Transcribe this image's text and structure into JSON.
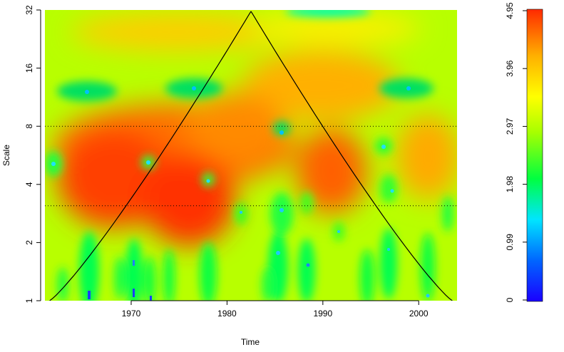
{
  "chart_data": {
    "type": "heatmap",
    "title": "",
    "xlabel": "Time",
    "ylabel": "Scale",
    "xlim": [
      1961,
      2004
    ],
    "ylim": [
      1,
      32
    ],
    "y_scale": "log2",
    "x_ticks": [
      1970,
      1980,
      1990,
      2000
    ],
    "y_ticks": [
      1,
      2,
      4,
      8,
      16,
      32
    ],
    "color_scale": {
      "min": 0,
      "max": 4.95,
      "tick_labels": [
        "0",
        "0.99",
        "1.98",
        "2.97",
        "3.96",
        "4.95"
      ],
      "palette": [
        "#1a00ff",
        "#0066ff",
        "#00e5ff",
        "#00ff40",
        "#a8ff00",
        "#ffff00",
        "#ffb000",
        "#ff2a00"
      ]
    },
    "cone_of_influence": {
      "peak": [
        1982.5,
        31.5
      ],
      "left_base": [
        1961.5,
        1
      ],
      "right_base": [
        2003.5,
        1
      ]
    },
    "significance_lines": [
      8,
      3.1
    ],
    "hotspots": [
      {
        "time": 1968,
        "scale": 4.2,
        "power": 4.9
      },
      {
        "time": 1975,
        "scale": 3.2,
        "power": 4.9
      },
      {
        "time": 1980,
        "scale": 6.5,
        "power": 4.5
      },
      {
        "time": 1990,
        "scale": 4.5,
        "power": 4.6
      },
      {
        "time": 1985,
        "scale": 12,
        "power": 4.3
      },
      {
        "time": 1978,
        "scale": 28,
        "power": 4.0
      }
    ]
  }
}
